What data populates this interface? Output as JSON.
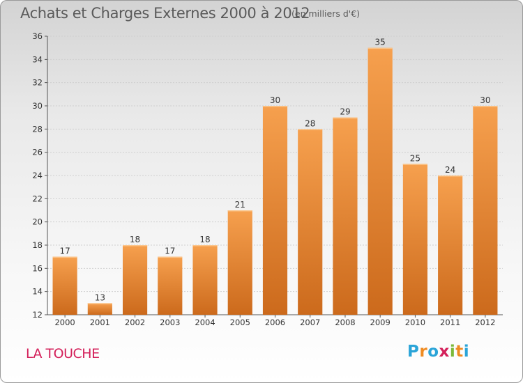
{
  "chart_data": {
    "type": "bar",
    "title": "Achats et Charges Externes 2000 à 2012",
    "subtitle": "(en milliers d'€)",
    "categories": [
      "2000",
      "2001",
      "2002",
      "2003",
      "2004",
      "2005",
      "2006",
      "2007",
      "2008",
      "2009",
      "2010",
      "2011",
      "2012"
    ],
    "values": [
      17,
      13,
      18,
      17,
      18,
      21,
      30,
      28,
      29,
      35,
      25,
      24,
      30
    ],
    "ylim": [
      12,
      36
    ],
    "yticks": [
      12,
      14,
      16,
      18,
      20,
      22,
      24,
      26,
      28,
      30,
      32,
      34,
      36
    ],
    "grid": true,
    "bar_color": "#f0963e",
    "bar_color_dark": "#cc6a1c"
  },
  "footer": {
    "commune": "LA TOUCHE",
    "commune_color": "#d4205a",
    "logo_text": "Proxiti",
    "logo_letters": [
      {
        "char": "P",
        "color": "#2aa4d8"
      },
      {
        "char": "r",
        "color": "#ef8b22"
      },
      {
        "char": "o",
        "color": "#2aa4d8"
      },
      {
        "char": "x",
        "color": "#d4205a"
      },
      {
        "char": "i",
        "color": "#7cb93a"
      },
      {
        "char": "t",
        "color": "#ef8b22"
      },
      {
        "char": "i",
        "color": "#2aa4d8"
      }
    ]
  }
}
